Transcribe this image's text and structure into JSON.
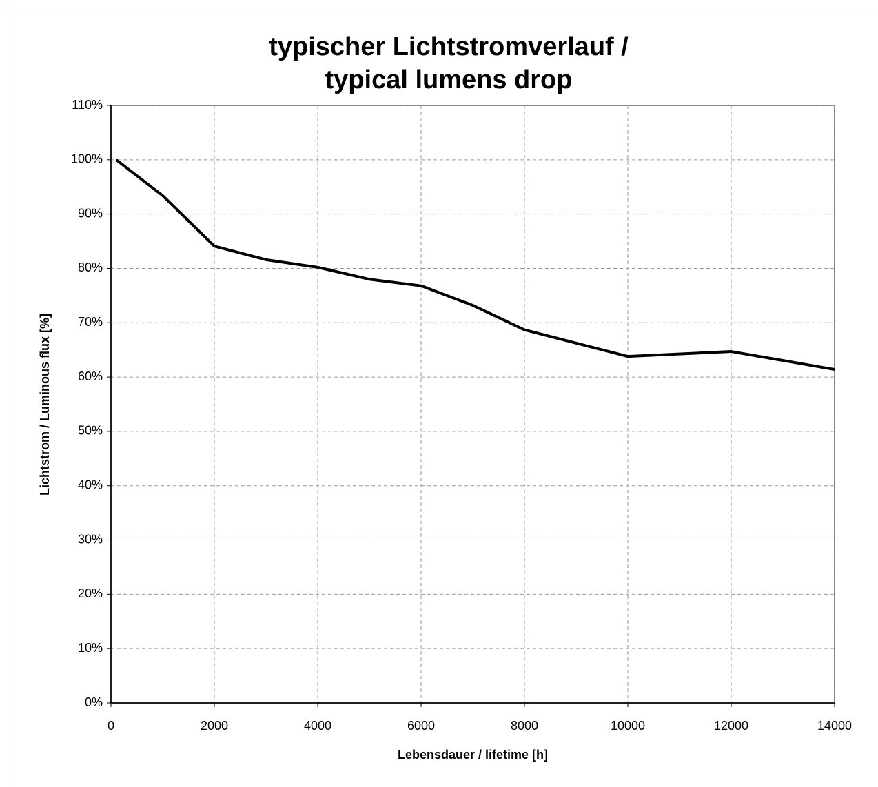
{
  "chart_data": {
    "type": "line",
    "title": [
      "typischer Lichtstromverlauf /",
      "typical lumens drop"
    ],
    "x_label": "Lebensdauer / lifetime [h]",
    "y_label": "Lichtstrom / Luminous flux [%]",
    "x": [
      100,
      1000,
      2000,
      3000,
      4000,
      5000,
      6000,
      7000,
      8000,
      10000,
      12000,
      14000
    ],
    "values": [
      100,
      93.4,
      84.1,
      81.6,
      80.2,
      78.0,
      76.8,
      73.2,
      68.7,
      63.8,
      64.7,
      61.4
    ],
    "color": "#000000",
    "xlim": [
      0,
      14000
    ],
    "xticks": [
      0,
      2000,
      4000,
      6000,
      8000,
      10000,
      12000,
      14000
    ],
    "ylim": [
      0,
      110
    ],
    "yticks": [
      {
        "value": 0,
        "label": "0%"
      },
      {
        "value": 10,
        "label": "10%"
      },
      {
        "value": 20,
        "label": "20%"
      },
      {
        "value": 30,
        "label": "30%"
      },
      {
        "value": 40,
        "label": "40%"
      },
      {
        "value": 50,
        "label": "50%"
      },
      {
        "value": 60,
        "label": "60%"
      },
      {
        "value": 70,
        "label": "70%"
      },
      {
        "value": 80,
        "label": "80%"
      },
      {
        "value": 90,
        "label": "90%"
      },
      {
        "value": 100,
        "label": "100%"
      },
      {
        "value": 110,
        "label": "110%"
      }
    ],
    "grid": true
  }
}
